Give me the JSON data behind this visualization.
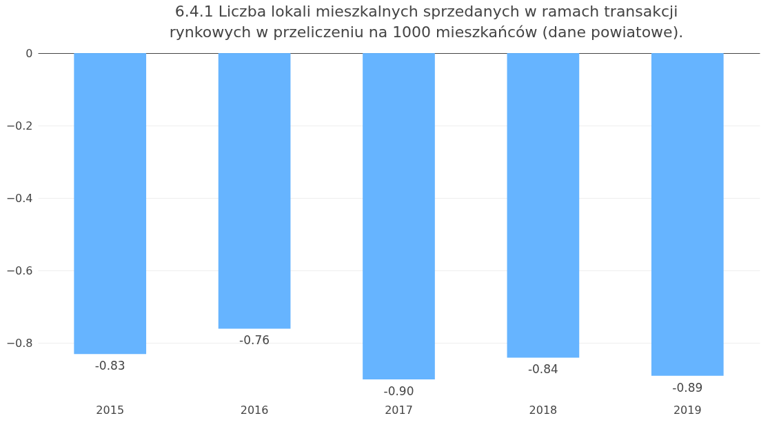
{
  "chart_data": {
    "type": "bar",
    "title": "6.4.1 Liczba lokali mieszkalnych sprzedanych w ramach transakcji rynkowych w przeliczeniu na 1000 mieszkańców (dane powiatowe).",
    "categories": [
      "2015",
      "2016",
      "2017",
      "2018",
      "2019"
    ],
    "values": [
      -0.83,
      -0.76,
      -0.9,
      -0.84,
      -0.89
    ],
    "value_labels": [
      "-0.83",
      "-0.76",
      "-0.90",
      "-0.84",
      "-0.89"
    ],
    "color": "#5eb0ff",
    "ylim": [
      -0.9,
      0
    ],
    "yticks": [
      0,
      {
        "value": -0.2,
        "label": "−0.2"
      },
      {
        "value": -0.4,
        "label": "−0.4"
      },
      {
        "value": -0.6,
        "label": "−0.6"
      },
      {
        "value": -0.8,
        "label": "−0.8"
      }
    ],
    "grid": "y"
  }
}
